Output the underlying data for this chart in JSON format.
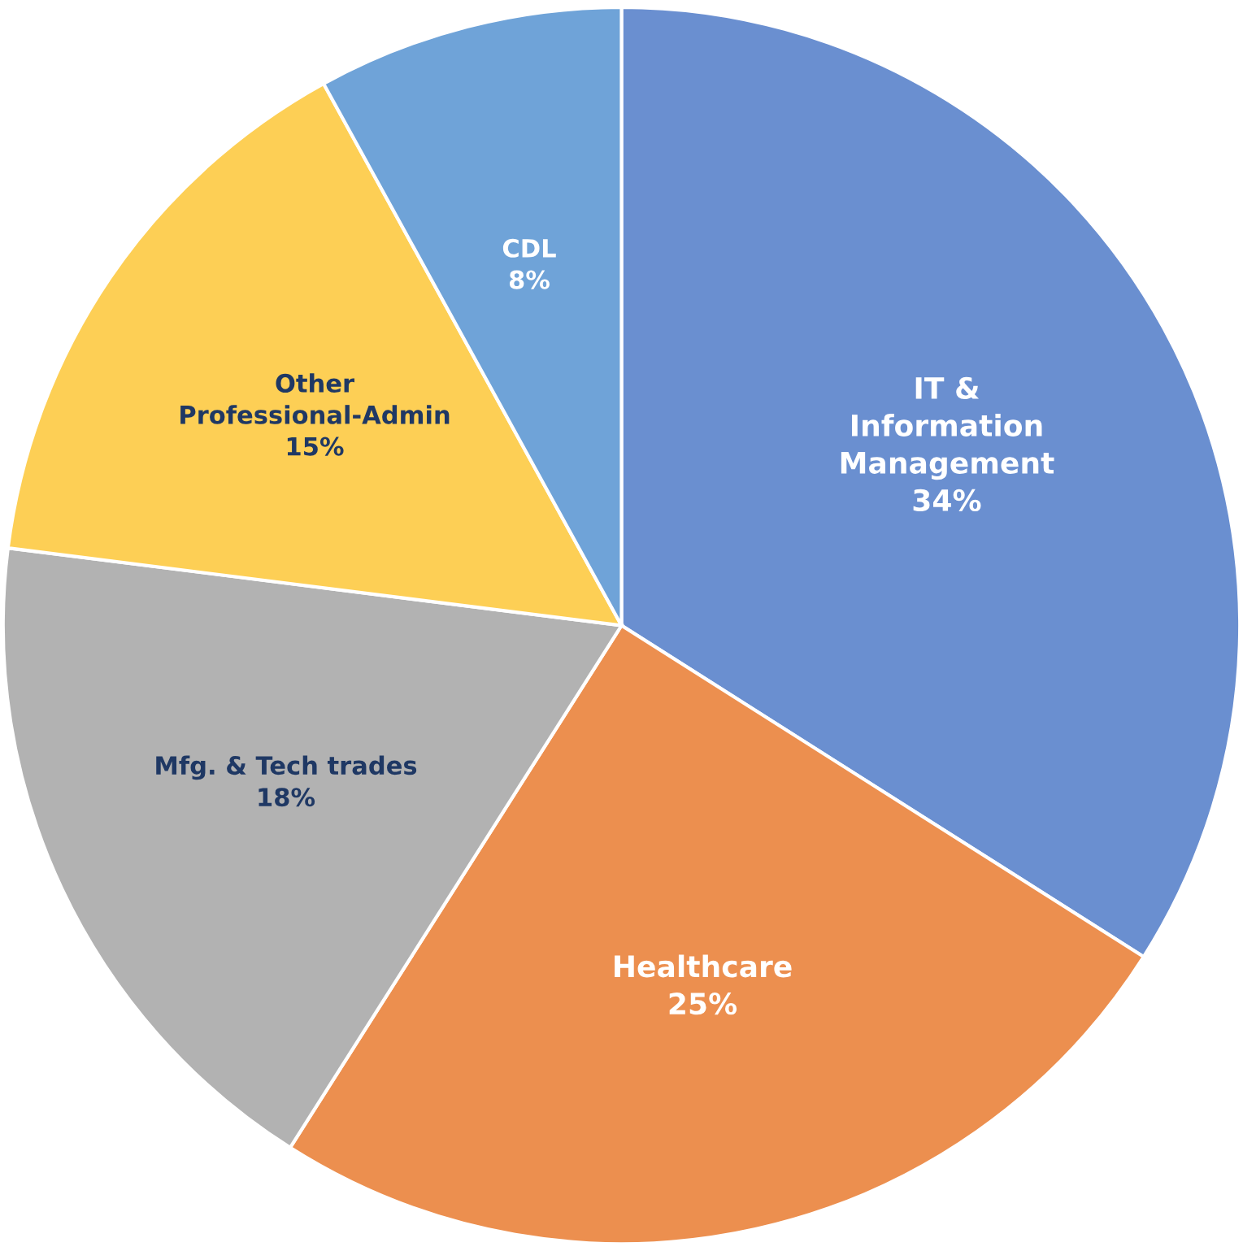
{
  "chart_data": {
    "type": "pie",
    "categories": [
      "IT &\nInformation\nManagement",
      "Healthcare",
      "Mfg. & Tech trades",
      "Other\nProfessional-Admin",
      "CDL"
    ],
    "values": [
      34,
      25,
      18,
      15,
      8
    ],
    "colors": [
      "#6a8fd0",
      "#ec8f4f",
      "#b2b2b2",
      "#fdcf55",
      "#6fa3d8"
    ],
    "value_labels": [
      "34%",
      "25%",
      "18%",
      "15%",
      "8%"
    ]
  }
}
